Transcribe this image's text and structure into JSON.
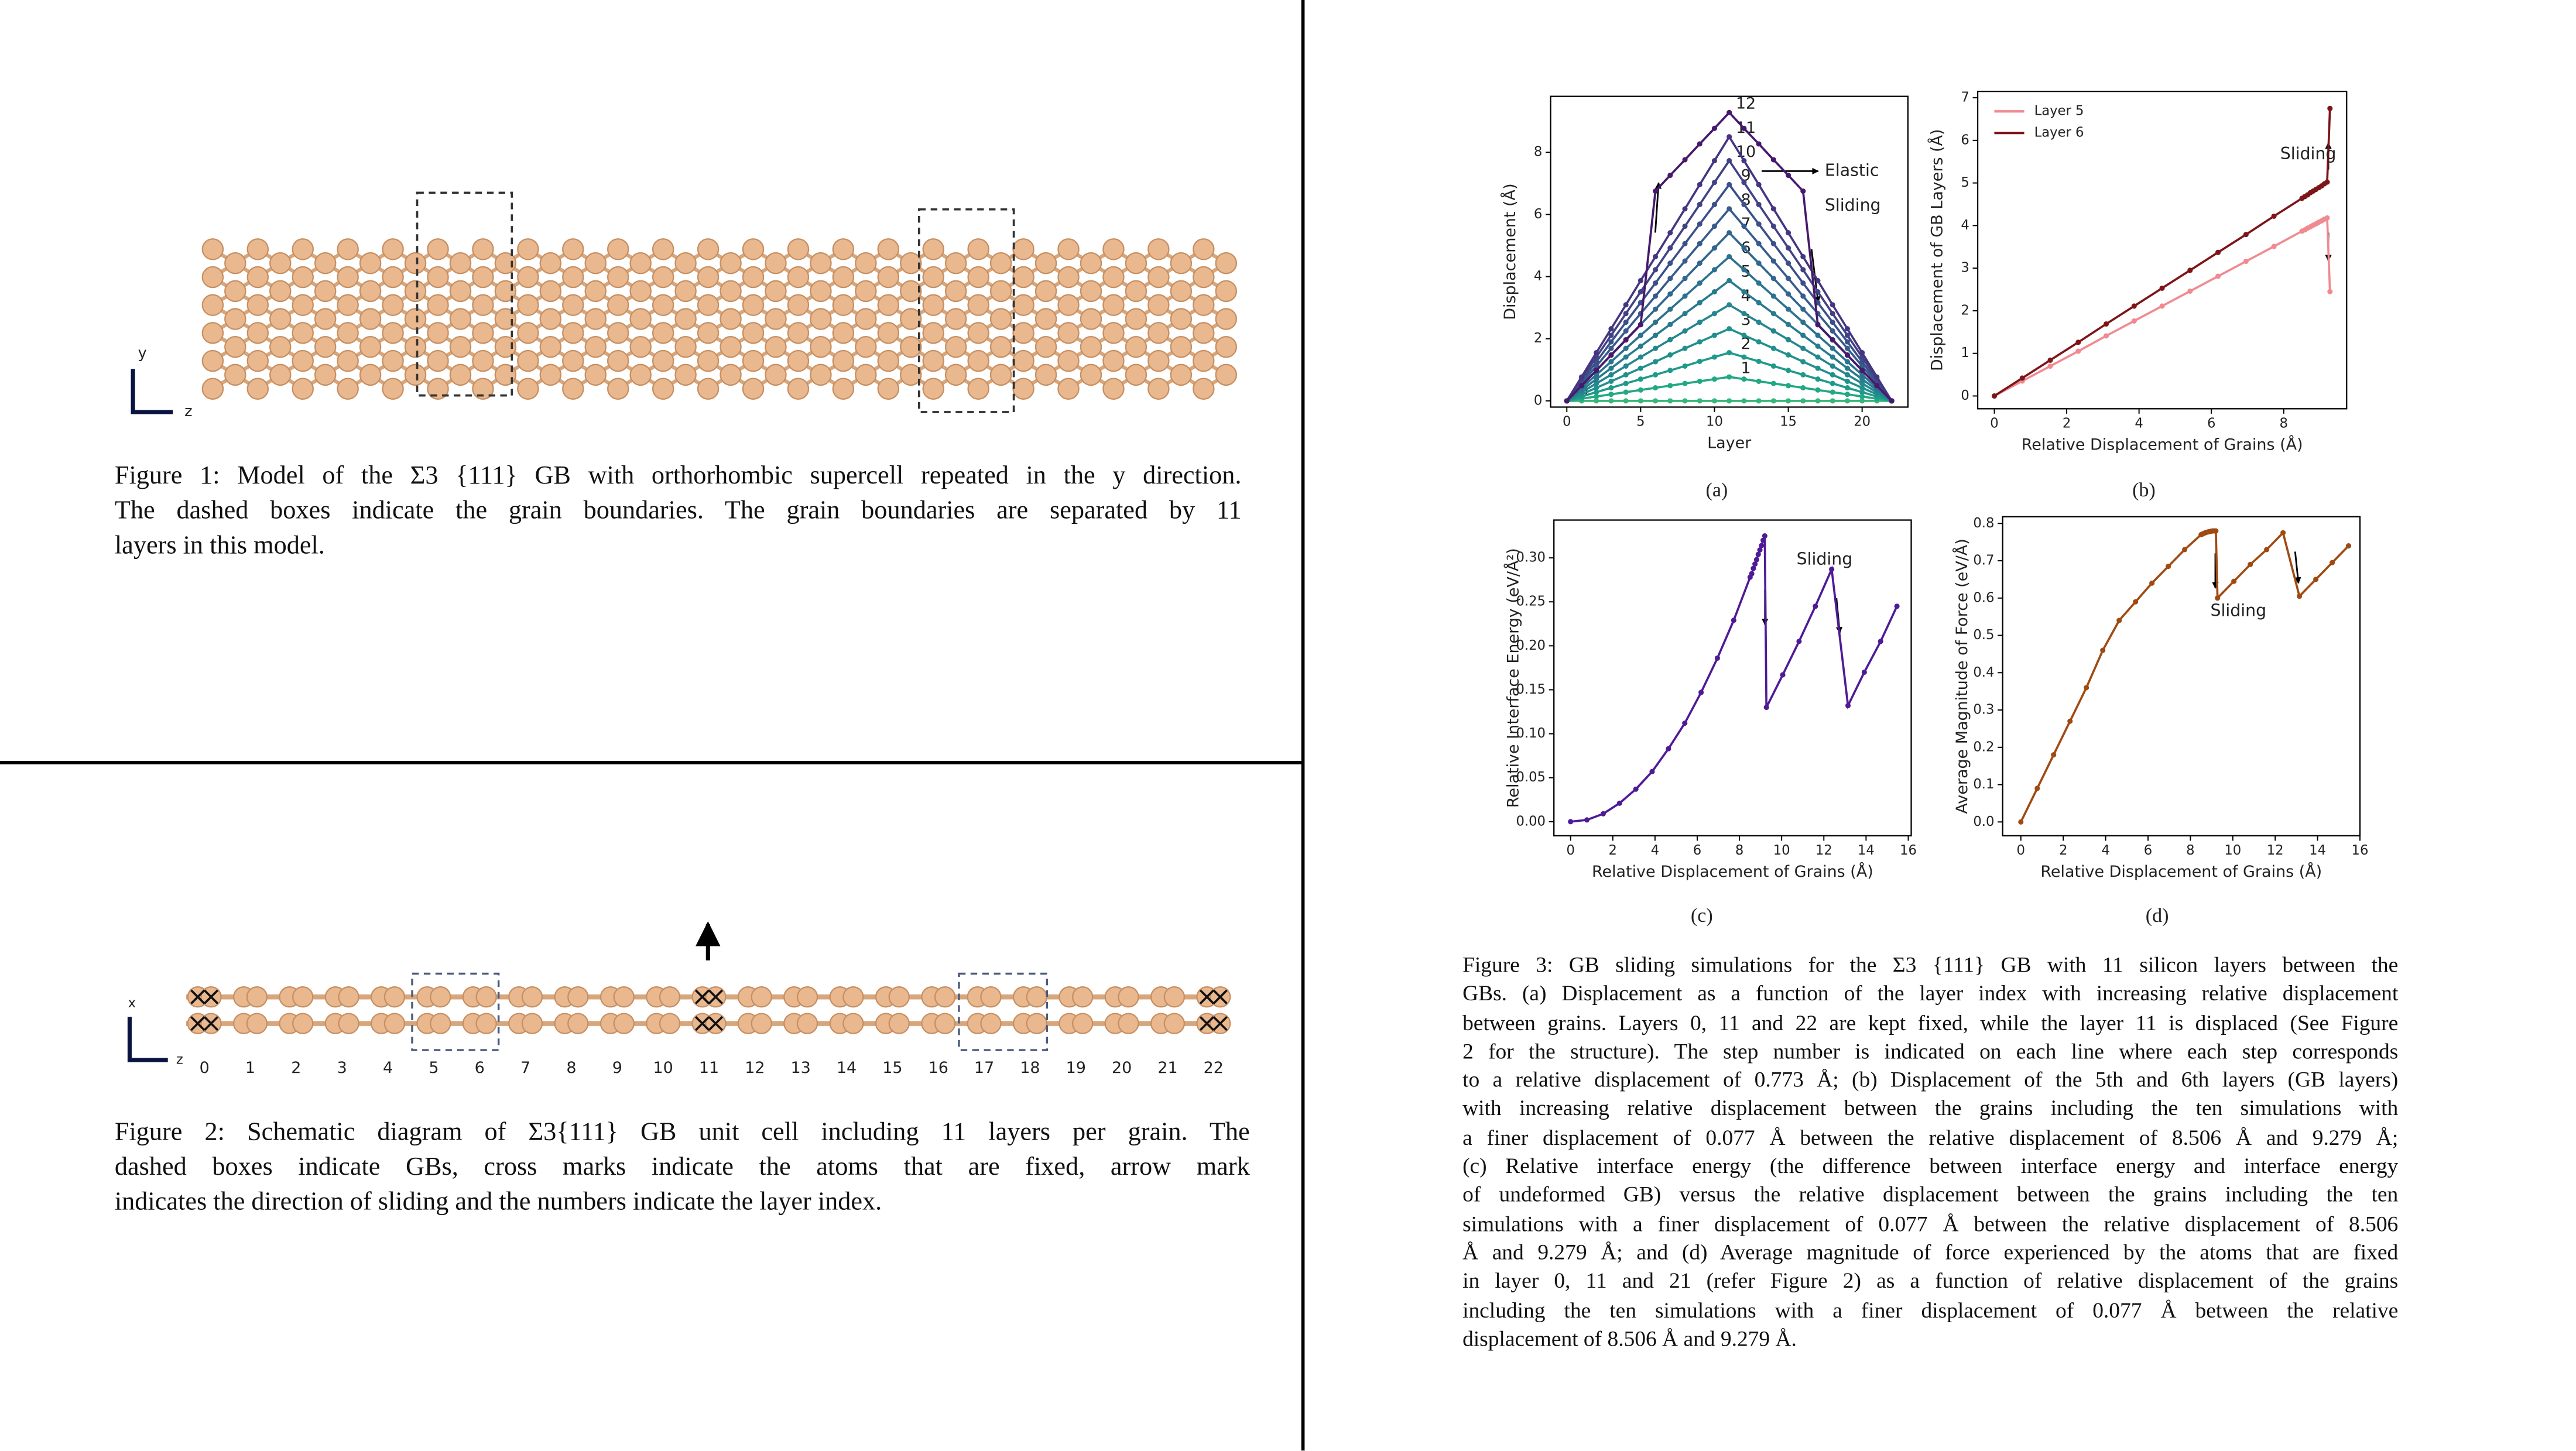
{
  "figure1": {
    "axes": [
      "y",
      "z"
    ],
    "caption": [
      "Figure 1: Model of the Σ3 {111} GB with orthorhombic supercell repeated in the y direction.",
      "The dashed boxes indicate the grain boundaries. The grain boundaries are separated by 11",
      "layers in this model."
    ]
  },
  "figure2": {
    "axes": [
      "x",
      "z"
    ],
    "layer_labels": [
      0,
      1,
      2,
      3,
      4,
      5,
      6,
      7,
      8,
      9,
      10,
      11,
      12,
      13,
      14,
      15,
      16,
      17,
      18,
      19,
      20,
      21,
      22
    ],
    "caption": [
      "Figure 2: Schematic diagram of Σ3{111} GB unit cell including 11 layers per grain. The",
      "dashed boxes indicate GBs, cross marks indicate the atoms that are fixed, arrow mark",
      "indicates the direction of sliding and the numbers indicate the layer index."
    ]
  },
  "figure3": {
    "subcaptions": [
      "(a)",
      "(b)",
      "(c)",
      "(d)"
    ],
    "caption": [
      "Figure 3: GB sliding simulations for the Σ3 {111} GB with 11 silicon layers between the",
      "GBs. (a) Displacement as a function of the layer index with increasing relative displacement",
      "between grains. Layers 0, 11 and 22 are kept fixed, while the layer 11 is displaced (See Figure",
      "2 for the structure). The step number is indicated on each line where each step corresponds",
      "to a relative displacement of 0.773 Å; (b) Displacement of the 5th and 6th layers (GB layers)",
      "with increasing relative displacement between the grains including the ten simulations with",
      "a finer displacement of 0.077 Å between the relative displacement of 8.506 Å and 9.279 Å;",
      "(c) Relative interface energy (the difference between interface energy and interface energy",
      "of undeformed GB) versus the relative displacement between the grains including the ten",
      "simulations with a finer displacement of 0.077 Å between the relative displacement of 8.506",
      "Å and 9.279 Å; and (d) Average magnitude of force experienced by the atoms that are fixed",
      "in layer 0, 11 and 21 (refer Figure 2) as a function of relative displacement of the grains",
      "including the ten simulations with a finer displacement of 0.077 Å between the relative",
      "displacement of 8.506 Å and 9.279 Å."
    ]
  },
  "chart_data": [
    {
      "type": "line",
      "xlabel": "Layer",
      "ylabel": "Displacement (Å)",
      "annotations": [
        "Elastic",
        "Sliding"
      ],
      "x": [
        0,
        1,
        2,
        3,
        4,
        5,
        6,
        7,
        8,
        9,
        10,
        11,
        12,
        13,
        14,
        15,
        16,
        17,
        18,
        19,
        20,
        21,
        22
      ],
      "xlim": [
        -1.1,
        23.1
      ],
      "xticks": [
        0,
        5,
        10,
        15,
        20
      ],
      "ylim": [
        -0.2,
        9.8
      ],
      "yticks": [
        0,
        2,
        4,
        6,
        8
      ],
      "series": [
        {
          "name": "0",
          "color": "#35b779",
          "values": [
            0,
            0,
            0,
            0,
            0,
            0,
            0,
            0,
            0,
            0,
            0,
            0,
            0,
            0,
            0,
            0,
            0,
            0,
            0,
            0,
            0,
            0,
            0
          ]
        },
        {
          "name": "1",
          "color": "#22a884",
          "values": [
            0,
            0.07,
            0.14,
            0.21,
            0.28,
            0.35,
            0.42,
            0.49,
            0.56,
            0.63,
            0.7,
            0.77,
            0.7,
            0.63,
            0.56,
            0.49,
            0.42,
            0.35,
            0.28,
            0.21,
            0.14,
            0.07,
            0
          ]
        },
        {
          "name": "2",
          "color": "#1f9a8a",
          "values": [
            0,
            0.14,
            0.28,
            0.42,
            0.56,
            0.7,
            0.84,
            0.98,
            1.12,
            1.27,
            1.41,
            1.55,
            1.41,
            1.27,
            1.12,
            0.98,
            0.84,
            0.7,
            0.56,
            0.42,
            0.28,
            0.14,
            0
          ]
        },
        {
          "name": "3",
          "color": "#21908d",
          "values": [
            0,
            0.21,
            0.42,
            0.63,
            0.84,
            1.05,
            1.26,
            1.48,
            1.69,
            1.9,
            2.11,
            2.32,
            2.11,
            1.9,
            1.69,
            1.48,
            1.26,
            1.05,
            0.84,
            0.63,
            0.42,
            0.21,
            0
          ]
        },
        {
          "name": "4",
          "color": "#24868e",
          "values": [
            0,
            0.28,
            0.56,
            0.84,
            1.12,
            1.41,
            1.69,
            1.97,
            2.25,
            2.53,
            2.81,
            3.09,
            2.81,
            2.53,
            2.25,
            1.97,
            1.69,
            1.41,
            1.12,
            0.84,
            0.56,
            0.28,
            0
          ]
        },
        {
          "name": "5",
          "color": "#277b8e",
          "values": [
            0,
            0.35,
            0.7,
            1.05,
            1.41,
            1.76,
            2.11,
            2.46,
            2.81,
            3.16,
            3.51,
            3.87,
            3.51,
            3.16,
            2.81,
            2.46,
            2.11,
            1.76,
            1.41,
            1.05,
            0.7,
            0.35,
            0
          ]
        },
        {
          "name": "6",
          "color": "#2c718e",
          "values": [
            0,
            0.42,
            0.84,
            1.26,
            1.69,
            2.11,
            2.53,
            2.95,
            3.37,
            3.79,
            4.22,
            4.64,
            4.22,
            3.79,
            3.37,
            2.95,
            2.53,
            2.11,
            1.69,
            1.26,
            0.84,
            0.42,
            0
          ]
        },
        {
          "name": "7",
          "color": "#31668e",
          "values": [
            0,
            0.49,
            0.98,
            1.48,
            1.97,
            2.46,
            2.95,
            3.44,
            3.94,
            4.43,
            4.92,
            5.41,
            4.92,
            4.43,
            3.94,
            3.44,
            2.95,
            2.46,
            1.97,
            1.48,
            0.98,
            0.49,
            0
          ]
        },
        {
          "name": "8",
          "color": "#365b8c",
          "values": [
            0,
            0.56,
            1.12,
            1.69,
            2.25,
            2.81,
            3.37,
            3.94,
            4.5,
            5.06,
            5.62,
            6.18,
            5.62,
            5.06,
            4.5,
            3.94,
            3.37,
            2.81,
            2.25,
            1.69,
            1.12,
            0.56,
            0
          ]
        },
        {
          "name": "9",
          "color": "#3b4f8a",
          "values": [
            0,
            0.63,
            1.26,
            1.9,
            2.53,
            3.16,
            3.79,
            4.43,
            5.06,
            5.69,
            6.32,
            6.96,
            6.32,
            5.69,
            5.06,
            4.43,
            3.79,
            3.16,
            2.53,
            1.9,
            1.26,
            0.63,
            0
          ]
        },
        {
          "name": "10",
          "color": "#414286",
          "values": [
            0,
            0.7,
            1.41,
            2.11,
            2.81,
            3.51,
            4.22,
            4.92,
            5.62,
            6.32,
            7.03,
            7.73,
            7.03,
            6.32,
            5.62,
            4.92,
            4.22,
            3.51,
            2.81,
            2.11,
            1.41,
            0.7,
            0
          ]
        },
        {
          "name": "11",
          "color": "#453581",
          "values": [
            0,
            0.77,
            1.55,
            2.32,
            3.09,
            3.87,
            4.64,
            5.41,
            6.18,
            6.96,
            7.73,
            8.5,
            7.73,
            6.96,
            6.18,
            5.41,
            4.64,
            3.87,
            3.09,
            2.32,
            1.55,
            0.77,
            0
          ]
        },
        {
          "name": "12",
          "color": "#46196c",
          "values": [
            0,
            0.49,
            0.98,
            1.47,
            1.96,
            2.45,
            6.75,
            7.26,
            7.76,
            8.27,
            8.77,
            9.28,
            8.77,
            8.27,
            7.76,
            7.26,
            6.75,
            2.45,
            1.96,
            1.47,
            0.98,
            0.49,
            0
          ]
        }
      ]
    },
    {
      "type": "line",
      "xlabel": "Relative Displacement of Grains (Å)",
      "ylabel": "Displacement of GB Layers (Å)",
      "annotations": [
        "Sliding"
      ],
      "legend": "upper left",
      "x": [
        0,
        0.773,
        1.546,
        2.319,
        3.092,
        3.865,
        4.638,
        5.411,
        6.184,
        6.957,
        7.73,
        8.506,
        8.583,
        8.66,
        8.737,
        8.815,
        8.892,
        8.969,
        9.046,
        9.124,
        9.201,
        9.279
      ],
      "xlim": [
        -0.46,
        9.74
      ],
      "xticks": [
        0,
        2,
        4,
        6,
        8
      ],
      "ylim": [
        -0.3,
        7.15
      ],
      "yticks": [
        0,
        1,
        2,
        3,
        4,
        5,
        6,
        7
      ],
      "series": [
        {
          "name": "Layer 5",
          "color": "#f08a90",
          "values": [
            0,
            0.35,
            0.7,
            1.05,
            1.41,
            1.76,
            2.11,
            2.46,
            2.81,
            3.16,
            3.51,
            3.87,
            3.9,
            3.94,
            3.97,
            4.01,
            4.04,
            4.08,
            4.11,
            4.15,
            4.18,
            2.45
          ]
        },
        {
          "name": "Layer 6",
          "color": "#7d1418",
          "values": [
            0,
            0.42,
            0.84,
            1.26,
            1.69,
            2.11,
            2.53,
            2.95,
            3.37,
            3.79,
            4.22,
            4.64,
            4.68,
            4.72,
            4.77,
            4.81,
            4.85,
            4.89,
            4.93,
            4.98,
            5.02,
            6.75
          ]
        }
      ]
    },
    {
      "type": "line",
      "xlabel": "Relative Displacement of Grains (Å)",
      "ylabel": "Relative Interface Energy (eV/Å²)",
      "annotations": [
        "Sliding"
      ],
      "color": "#4f1a96",
      "x": [
        0,
        0.773,
        1.546,
        2.319,
        3.092,
        3.865,
        4.638,
        5.411,
        6.184,
        6.957,
        7.73,
        8.506,
        8.583,
        8.66,
        8.737,
        8.815,
        8.892,
        8.969,
        9.046,
        9.124,
        9.201,
        9.279,
        10.052,
        10.825,
        11.598,
        12.371,
        13.144,
        13.917,
        14.69,
        15.463
      ],
      "values": [
        0,
        0.002,
        0.009,
        0.021,
        0.037,
        0.057,
        0.083,
        0.112,
        0.147,
        0.186,
        0.229,
        0.278,
        0.282,
        0.288,
        0.293,
        0.298,
        0.304,
        0.309,
        0.314,
        0.32,
        0.325,
        0.13,
        0.167,
        0.205,
        0.245,
        0.287,
        0.132,
        0.17,
        0.205,
        0.245
      ],
      "xlim": [
        -0.79,
        16.14
      ],
      "xticks": [
        0,
        2,
        4,
        6,
        8,
        10,
        12,
        14,
        16
      ],
      "ylim": [
        -0.016,
        0.343
      ],
      "yticks": [
        {
          "value": 0,
          "label": "0.00"
        },
        {
          "value": 0.05,
          "label": "0.05"
        },
        {
          "value": 0.1,
          "label": "0.10"
        },
        {
          "value": 0.15,
          "label": "0.15"
        },
        {
          "value": 0.2,
          "label": "0.20"
        },
        {
          "value": 0.25,
          "label": "0.25"
        },
        {
          "value": 0.3,
          "label": "0.30"
        }
      ]
    },
    {
      "type": "line",
      "xlabel": "Relative Displacement of Grains (Å)",
      "ylabel": "Average Magnitude of Force (eV/Å)",
      "annotations": [
        "Sliding"
      ],
      "color": "#a04a12",
      "x": [
        0,
        0.773,
        1.546,
        2.319,
        3.092,
        3.865,
        4.638,
        5.411,
        6.184,
        6.957,
        7.73,
        8.506,
        8.583,
        8.66,
        8.737,
        8.815,
        8.892,
        8.969,
        9.046,
        9.124,
        9.201,
        9.279,
        10.052,
        10.825,
        11.598,
        12.371,
        13.144,
        13.917,
        14.69,
        15.463
      ],
      "values": [
        0,
        0.09,
        0.18,
        0.27,
        0.36,
        0.46,
        0.54,
        0.59,
        0.64,
        0.685,
        0.73,
        0.77,
        0.772,
        0.774,
        0.776,
        0.777,
        0.778,
        0.779,
        0.78,
        0.78,
        0.78,
        0.6,
        0.645,
        0.69,
        0.73,
        0.775,
        0.605,
        0.65,
        0.695,
        0.74
      ],
      "xlim": [
        -0.86,
        16.0
      ],
      "xticks": [
        0,
        2,
        4,
        6,
        8,
        10,
        12,
        14,
        16
      ],
      "ylim": [
        -0.037,
        0.818
      ],
      "yticks": [
        {
          "value": 0,
          "label": "0.0"
        },
        0.1,
        0.2,
        0.3,
        0.4,
        0.5,
        0.6,
        0.7,
        0.8
      ]
    }
  ]
}
